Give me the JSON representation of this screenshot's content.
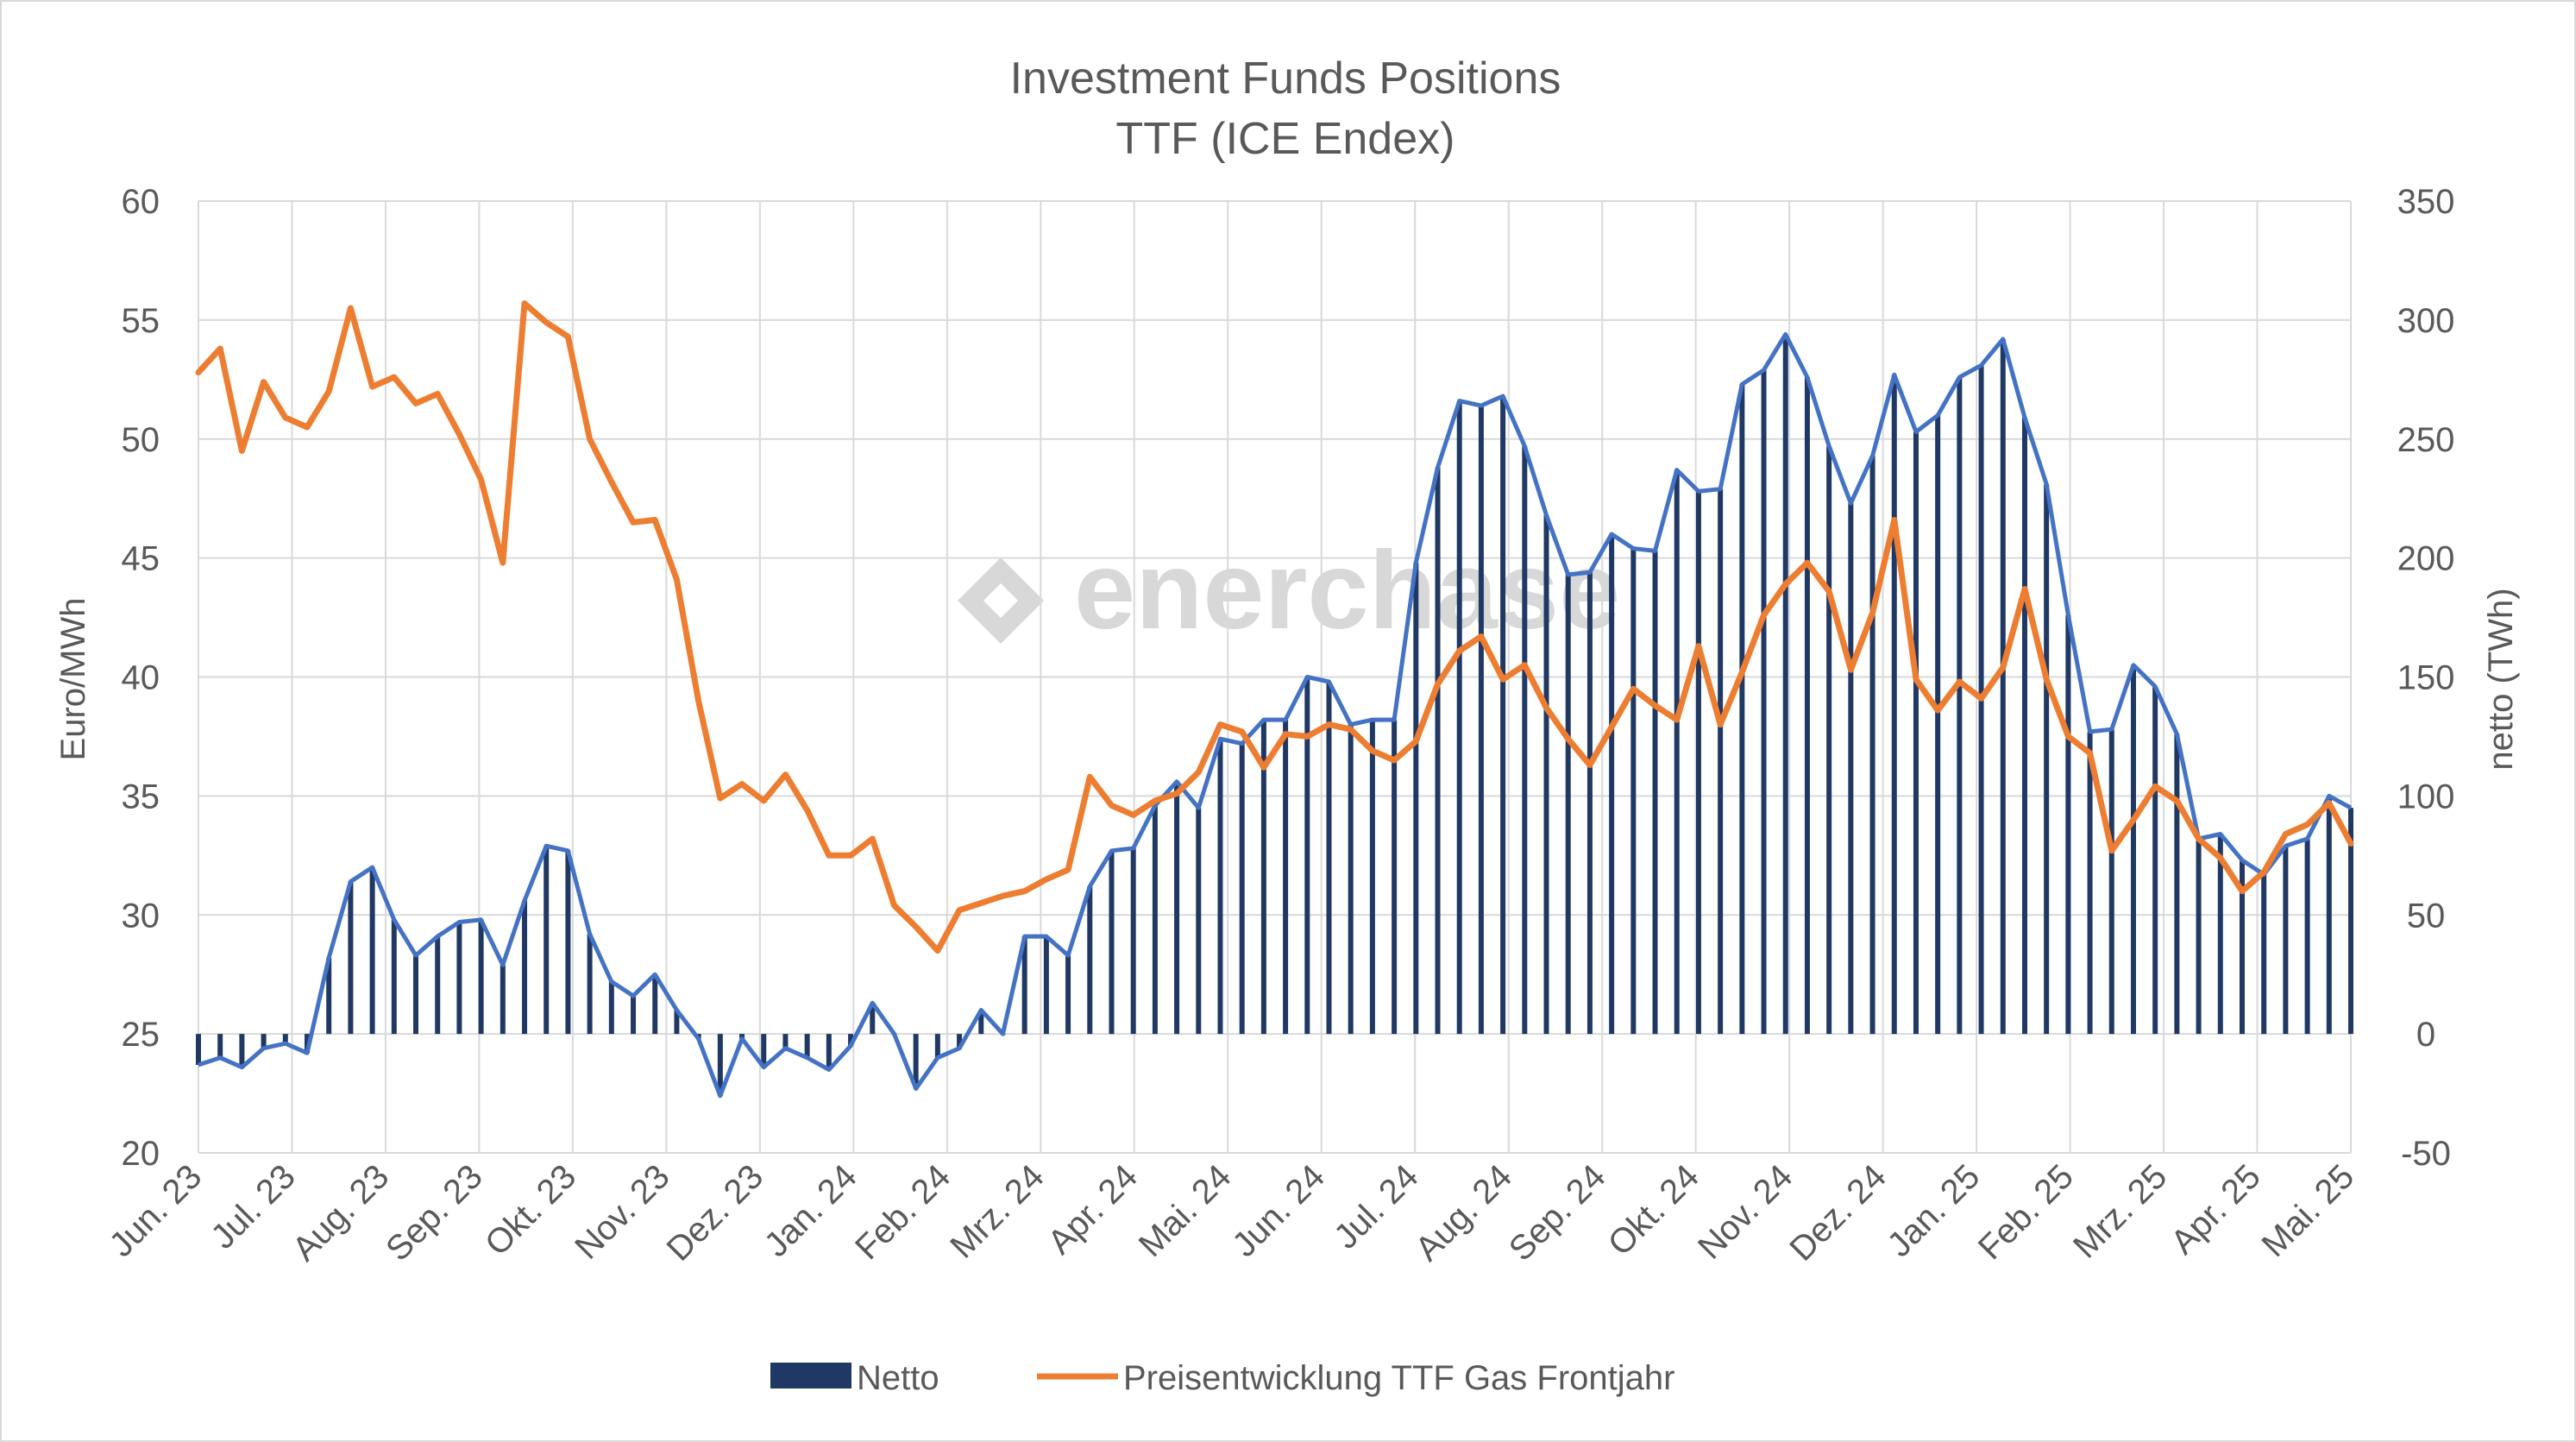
{
  "chart_data": {
    "type": "bar+line",
    "title": [
      "Investment Funds Positions",
      "TTF (ICE Endex)"
    ],
    "ylabel_left": "Euro/MWh",
    "ylabel_right": "netto (TWh)",
    "ylim_left": [
      20,
      60
    ],
    "yticks_left": [
      20,
      25,
      30,
      35,
      40,
      45,
      50,
      55,
      60
    ],
    "ylim_right": [
      -50,
      350
    ],
    "yticks_right": [
      -50,
      0,
      50,
      100,
      150,
      200,
      250,
      300,
      350
    ],
    "x_tick_labels": [
      "Jun. 23",
      "Jul. 23",
      "Aug. 23",
      "Sep. 23",
      "Okt. 23",
      "Nov. 23",
      "Dez. 23",
      "Jan. 24",
      "Feb. 24",
      "Mrz. 24",
      "Apr. 24",
      "Mai. 24",
      "Jun. 24",
      "Jul. 24",
      "Aug. 24",
      "Sep. 24",
      "Okt. 24",
      "Nov. 24",
      "Dez. 24",
      "Jan. 25",
      "Feb. 25",
      "Mrz. 25",
      "Apr. 25",
      "Mai. 25"
    ],
    "grid": true,
    "legend": {
      "position": "bottom",
      "entries": [
        "Netto",
        "Preisentwicklung TTF Gas Frontjahr"
      ]
    },
    "watermark": "enerchase",
    "series": [
      {
        "name": "Netto",
        "axis": "right",
        "type": "bar",
        "color": "#203864",
        "outline_color": "#4472c4",
        "values": [
          -13,
          -10,
          -14,
          -6,
          -4,
          -8,
          32,
          64,
          70,
          48,
          33,
          41,
          47,
          48,
          29,
          56,
          79,
          77,
          42,
          22,
          16,
          25,
          10,
          -2,
          -26,
          -2,
          -14,
          -6,
          -10,
          -15,
          -5,
          13,
          0,
          -23,
          -10,
          -6,
          10,
          0,
          41,
          41,
          33,
          62,
          77,
          78,
          96,
          106,
          95,
          124,
          122,
          132,
          132,
          150,
          148,
          130,
          132,
          132,
          198,
          238,
          266,
          264,
          268,
          247,
          218,
          193,
          194,
          210,
          204,
          203,
          237,
          228,
          229,
          273,
          279,
          294,
          276,
          247,
          223,
          243,
          277,
          253,
          260,
          276,
          281,
          292,
          259,
          231,
          176,
          127,
          128,
          155,
          146,
          126,
          82,
          84,
          73,
          67,
          79,
          82,
          100,
          95
        ]
      },
      {
        "name": "Preisentwicklung TTF Gas Frontjahr",
        "axis": "left",
        "type": "line",
        "color": "#ed7d31",
        "values": [
          52.8,
          53.8,
          49.5,
          52.4,
          50.9,
          50.5,
          52.0,
          55.5,
          52.2,
          52.6,
          51.5,
          51.9,
          50.2,
          48.3,
          44.8,
          55.7,
          54.9,
          54.3,
          50.0,
          48.2,
          46.5,
          46.6,
          44.1,
          39.0,
          34.9,
          35.5,
          34.8,
          35.9,
          34.4,
          32.5,
          32.5,
          33.2,
          30.4,
          29.5,
          28.5,
          30.2,
          30.5,
          30.8,
          31.0,
          31.5,
          31.9,
          35.8,
          34.6,
          34.2,
          34.8,
          35.1,
          36.0,
          38.0,
          37.7,
          36.2,
          37.6,
          37.5,
          38.0,
          37.8,
          36.9,
          36.5,
          37.3,
          39.7,
          41.1,
          41.7,
          39.9,
          40.5,
          38.7,
          37.4,
          36.3,
          37.9,
          39.5,
          38.8,
          38.2,
          41.3,
          38.0,
          40.2,
          42.6,
          43.9,
          44.8,
          43.6,
          40.3,
          42.7,
          46.6,
          39.9,
          38.6,
          39.8,
          39.1,
          40.4,
          43.7,
          39.9,
          37.5,
          36.8,
          32.7,
          34.0,
          35.4,
          34.8,
          33.2,
          32.4,
          31.0,
          31.8,
          33.4,
          33.8,
          34.7,
          33.0
        ]
      }
    ]
  }
}
